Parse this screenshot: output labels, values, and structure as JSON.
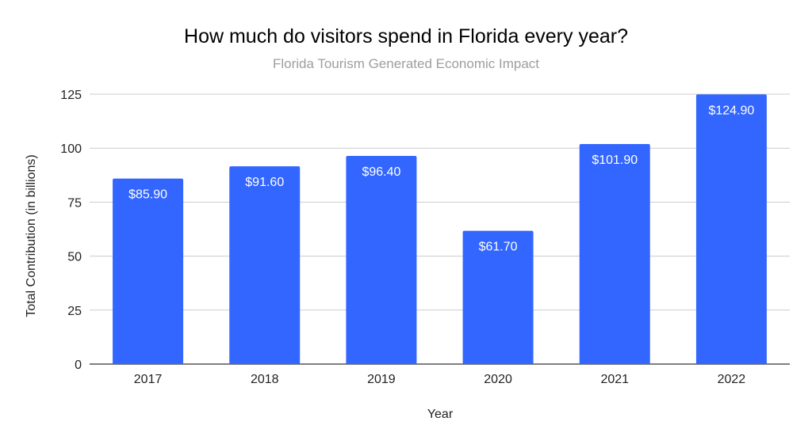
{
  "chart_data": {
    "type": "bar",
    "title": "How much do visitors spend in Florida every year?",
    "subtitle": "Florida Tourism Generated Economic Impact",
    "xlabel": "Year",
    "ylabel": "Total Contribution (in billions)",
    "categories": [
      "2017",
      "2018",
      "2019",
      "2020",
      "2021",
      "2022"
    ],
    "values": [
      85.9,
      91.6,
      96.4,
      61.7,
      101.9,
      124.9
    ],
    "data_labels": [
      "$85.90",
      "$91.60",
      "$96.40",
      "$61.70",
      "$101.90",
      "$124.90"
    ],
    "ylim": [
      0,
      125
    ],
    "yticks": [
      "0",
      "25",
      "50",
      "75",
      "100",
      "125"
    ],
    "grid": true,
    "legend": "none",
    "bar_color": "#3366ff"
  }
}
